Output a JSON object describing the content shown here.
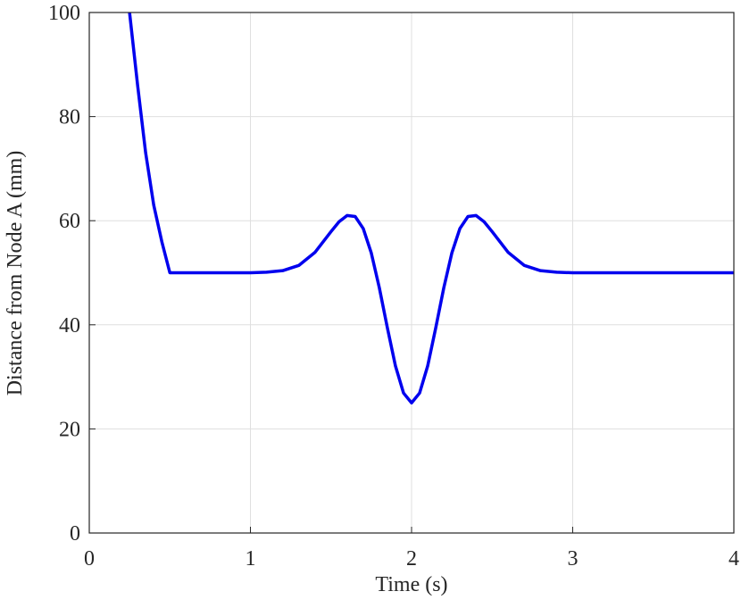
{
  "chart_data": {
    "type": "line",
    "xlabel": "Time (s)",
    "ylabel": "Distance from Node A (mm)",
    "xlim": [
      0,
      4
    ],
    "xticks": [
      0,
      1,
      2,
      3,
      4
    ],
    "ylim": [
      0,
      100
    ],
    "yticks": [
      0,
      20,
      40,
      60,
      80,
      100
    ],
    "grid": true,
    "series": [
      {
        "color": "#0000ee",
        "x": [
          0.25,
          0.3,
          0.35,
          0.4,
          0.45,
          0.5,
          1.0,
          1.1,
          1.2,
          1.3,
          1.4,
          1.5,
          1.55,
          1.6,
          1.65,
          1.7,
          1.75,
          1.8,
          1.85,
          1.9,
          1.95,
          2.0,
          2.05,
          2.1,
          2.15,
          2.2,
          2.25,
          2.3,
          2.35,
          2.4,
          2.45,
          2.5,
          2.6,
          2.7,
          2.8,
          2.9,
          3.0,
          4.0
        ],
        "values": [
          100,
          86,
          73,
          63,
          56,
          50,
          50,
          50.1,
          50.4,
          51.4,
          53.9,
          57.9,
          59.8,
          61,
          60.8,
          58.5,
          53.8,
          47.1,
          39.4,
          32.1,
          26.9,
          25,
          26.9,
          32.1,
          39.4,
          47.1,
          53.8,
          58.5,
          60.8,
          61,
          59.8,
          57.9,
          53.9,
          51.4,
          50.4,
          50.1,
          50,
          50
        ]
      }
    ]
  }
}
